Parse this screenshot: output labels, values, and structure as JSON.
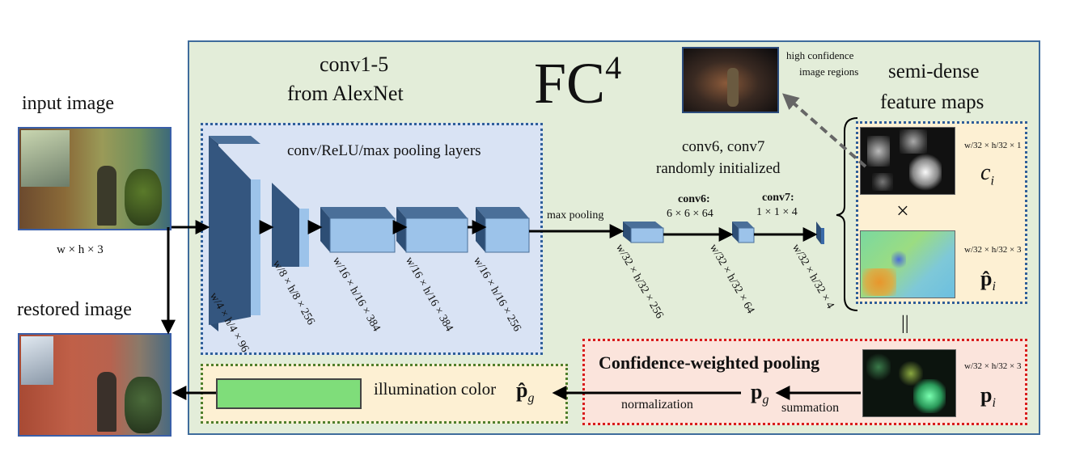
{
  "title": "FC",
  "title_sup": "4",
  "labels": {
    "input_image": "input image",
    "input_dim": "w × h × 3",
    "restored_image": "restored image",
    "alexnet_l1": "conv1-5",
    "alexnet_l2": "from AlexNet",
    "conv_relu": "conv/ReLU/max pooling layers",
    "max_pooling": "max pooling",
    "conv67_l1": "conv6, conv7",
    "conv67_l2": "randomly initialized",
    "conv6_head": "conv6:",
    "conv6_size": "6 × 6 × 64",
    "conv7_head": "conv7:",
    "conv7_size": "1 × 1 × 4",
    "high_conf_l1": "high confidence",
    "high_conf_l2": "image regions",
    "semi_dense_l1": "semi-dense",
    "semi_dense_l2": "feature maps",
    "times": "×",
    "equals": "||",
    "cwp": "Confidence-weighted pooling",
    "illum_color": "illumination color",
    "p_hat_g": "p̂",
    "p_g": "p",
    "sub_g": "g",
    "normalization": "normalization",
    "summation": "summation",
    "c_i": "c",
    "p_hat_i": "p̂",
    "p_i": "p",
    "sub_i": "i",
    "map_dim_1": "w/32 × h/32 × 1",
    "map_dim_3": "w/32 × h/32 × 3",
    "map_dim_3b": "w/32 × h/32 × 3"
  },
  "layer_dims": [
    "w/4 × h/4 × 96",
    "w/8 × h/8 × 256",
    "w/16 × h/16 × 384",
    "w/16 × h/16 × 384",
    "w/16 × h/16 × 256",
    "w/32 × h/32 × 256",
    "w/32 × h/32 × 64",
    "w/32 × h/32 × 4"
  ],
  "colors": {
    "outer_panel": "#e3edd9",
    "outer_border": "#3f6c9c",
    "alexnet_panel": "#d9e3f4",
    "dotted_blue": "#2f5f9a",
    "feature_panel": "#fdf0d3",
    "pool_panel": "#fbe4dc",
    "dotted_red": "#d81c1c",
    "output_panel": "#fdf0d3",
    "dotted_green": "#4f7f2c",
    "illum_swatch": "#7fdd7a",
    "block_front": "#9cc3ea",
    "block_side": "#2d4e75",
    "block_top": "#4a6f99"
  }
}
